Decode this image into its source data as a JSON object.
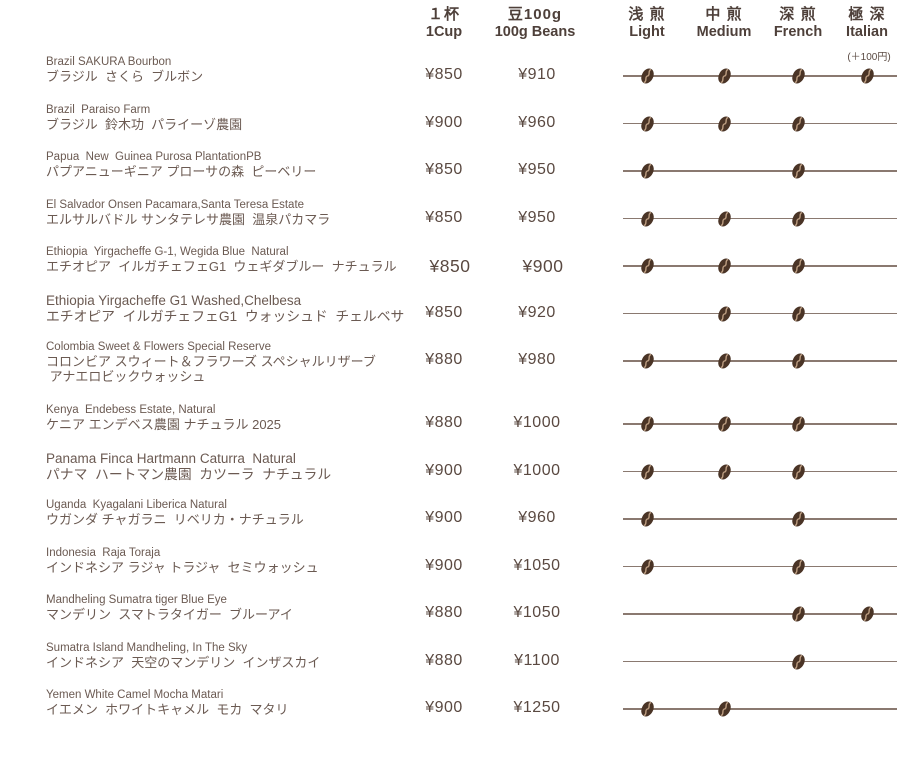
{
  "colors": {
    "text": "#6b5a52",
    "price": "#5a4941",
    "header": "#4e403a",
    "line": "#8a7970",
    "bean": "#4a3426",
    "bean_crease": "#c9a98c",
    "note": "#5a4a42"
  },
  "header": {
    "cup": {
      "ja": "１杯",
      "en": "1Cup"
    },
    "beans": {
      "ja": "豆100g",
      "en": "100g Beans"
    },
    "roasts": [
      {
        "key": "light",
        "ja": "浅 煎",
        "en": "Light"
      },
      {
        "key": "medium",
        "ja": "中 煎",
        "en": "Medium"
      },
      {
        "key": "french",
        "ja": "深 煎",
        "en": "French"
      },
      {
        "key": "italian",
        "ja": "極 深",
        "en": "Italian"
      }
    ],
    "italian_note": "(＋100円)"
  },
  "items": [
    {
      "name_en": "Brazil SAKURA Bourbon",
      "name_ja": "ブラジル  さくら  ブルボン",
      "price_cup": "¥850",
      "price_beans": "¥910",
      "roasts": [
        "light",
        "medium",
        "french",
        "italian"
      ]
    },
    {
      "name_en": "Brazil  Paraiso Farm",
      "name_ja": "ブラジル  鈴木功  パライーゾ農園",
      "price_cup": "¥900",
      "price_beans": "¥960",
      "roasts": [
        "light",
        "medium",
        "french"
      ]
    },
    {
      "name_en": "Papua  New  Guinea Purosa PlantationPB",
      "name_ja": "パプアニューギニア プローサの森  ピーベリー",
      "price_cup": "¥850",
      "price_beans": "¥950",
      "roasts": [
        "light",
        "french"
      ]
    },
    {
      "name_en": "El Salvador Onsen Pacamara,Santa Teresa Estate",
      "name_ja": "エルサルバドル サンタテレサ農園  温泉パカマラ",
      "price_cup": "¥850",
      "price_beans": "¥950",
      "roasts": [
        "light",
        "medium",
        "french"
      ]
    },
    {
      "name_en": "Ethiopia  Yirgacheffe G-1, Wegida Blue  Natural",
      "name_ja": "エチオピア  イルガチェフェG1  ウェギダブルー  ナチュラル",
      "price_cup": "¥850",
      "price_beans": "¥900",
      "price_large": true,
      "roasts": [
        "light",
        "medium",
        "french"
      ]
    },
    {
      "name_en": "Ethiopia Yirgacheffe G1 Washed,Chelbesa",
      "large_name": true,
      "name_ja": "エチオピア  イルガチェフェG1  ウォッシュド  チェルベサ",
      "price_cup": "¥850",
      "price_beans": "¥920",
      "roasts": [
        "medium",
        "french"
      ]
    },
    {
      "name_en": "Colombia Sweet & Flowers Special Reserve",
      "name_ja": "コロンビア スウィート＆フラワーズ スペシャルリザーブ",
      "name_ja2": " アナエロビックウォッシュ",
      "price_cup": "¥880",
      "price_beans": "¥980",
      "roasts": [
        "light",
        "medium",
        "french"
      ]
    },
    {
      "name_en": "Kenya  Endebess Estate, Natural",
      "name_ja": "ケニア エンデベス農園 ナチュラル 2025",
      "price_cup": "¥880",
      "price_beans": "¥1000",
      "roasts": [
        "light",
        "medium",
        "french"
      ]
    },
    {
      "name_en": "Panama Finca Hartmann Caturra  Natural",
      "large_name": true,
      "name_ja": "パナマ  ハートマン農園  カツーラ  ナチュラル",
      "price_cup": "¥900",
      "price_beans": "¥1000",
      "roasts": [
        "light",
        "medium",
        "french"
      ]
    },
    {
      "name_en": "Uganda  Kyagalani Liberica Natural",
      "name_ja": "ウガンダ チャガラニ  リベリカ・ナチュラル",
      "price_cup": "¥900",
      "price_beans": "¥960",
      "roasts": [
        "light",
        "french"
      ]
    },
    {
      "name_en": "Indonesia  Raja Toraja",
      "name_ja": "インドネシア ラジャ トラジャ  セミウォッシュ",
      "price_cup": "¥900",
      "price_beans": "¥1050",
      "roasts": [
        "light",
        "french"
      ]
    },
    {
      "name_en": "Mandheling Sumatra tiger Blue Eye",
      "name_ja": "マンデリン  スマトラタイガー  ブルーアイ",
      "price_cup": "¥880",
      "price_beans": "¥1050",
      "roasts": [
        "french",
        "italian"
      ]
    },
    {
      "name_en": "Sumatra Island Mandheling, In The Sky",
      "name_ja": "インドネシア  天空のマンデリン  インザスカイ",
      "price_cup": "¥880",
      "price_beans": "¥1100",
      "roasts": [
        "french"
      ]
    },
    {
      "name_en": "Yemen White Camel Mocha Matari",
      "name_ja": "イエメン  ホワイトキャメル  モカ  マタリ",
      "price_cup": "¥900",
      "price_beans": "¥1250",
      "roasts": [
        "light",
        "medium"
      ]
    }
  ]
}
